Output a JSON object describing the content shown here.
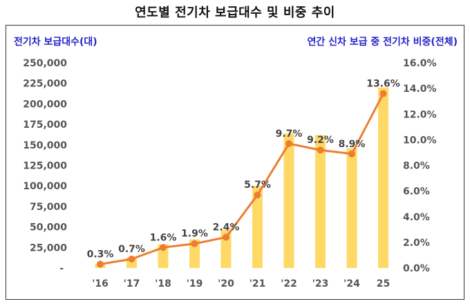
{
  "chart_data": {
    "type": "bar+line",
    "title": "연도별 전기차 보급대수 및 비중 추이",
    "ylabel_left": "전기차 보급대수(대)",
    "ylabel_right": "연간 신차 보급 중 전기차 비중(전체)",
    "categories": [
      "'16",
      "'17",
      "'18",
      "'19",
      "'20",
      "'21",
      "'22",
      "'23",
      "'24",
      "25"
    ],
    "series": [
      {
        "name": "전기차 보급대수",
        "type": "bar",
        "axis": "left",
        "color": "#ffd966",
        "values": [
          5000,
          13000,
          29000,
          35000,
          46000,
          100000,
          164000,
          162000,
          146000,
          220000
        ]
      },
      {
        "name": "전기차 비중",
        "type": "line",
        "axis": "right",
        "color": "#ed7d31",
        "values": [
          0.3,
          0.7,
          1.6,
          1.9,
          2.4,
          5.7,
          9.7,
          9.2,
          8.9,
          13.6
        ],
        "labels": [
          "0.3%",
          "0.7%",
          "1.6%",
          "1.9%",
          "2.4%",
          "5.7%",
          "9.7%",
          "9.2%",
          "8.9%",
          "13.6%"
        ]
      }
    ],
    "left_ticks": [
      "-",
      "25,000",
      "50,000",
      "75,000",
      "100,000",
      "125,000",
      "150,000",
      "175,000",
      "200,000",
      "225,000",
      "250,000"
    ],
    "right_ticks": [
      "0.0%",
      "2.0%",
      "4.0%",
      "6.0%",
      "8.0%",
      "10.0%",
      "12.0%",
      "14.0%",
      "16.0%"
    ],
    "ylim_left": [
      0,
      250000
    ],
    "ylim_right": [
      0,
      16
    ]
  }
}
